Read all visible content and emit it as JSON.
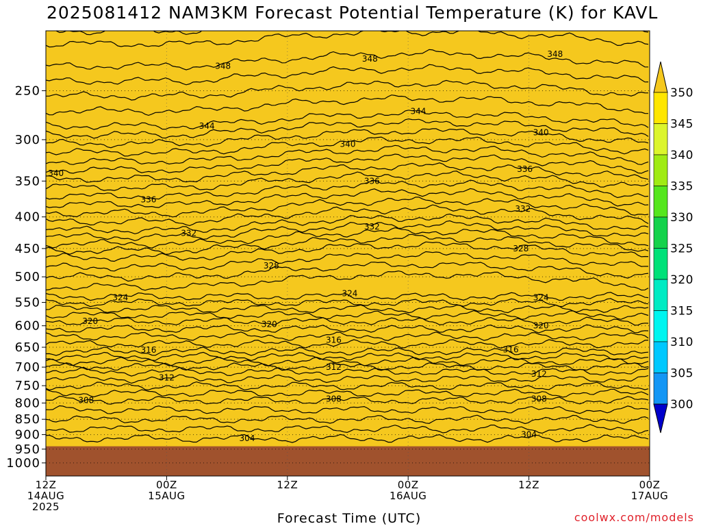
{
  "title": "2025081412 NAM3KM Forecast Potential Temperature (K) for KAVL",
  "xlabel": "Forecast Time (UTC)",
  "credit": "coolwx.com/models",
  "chart_data": {
    "type": "heatmap",
    "title": "2025081412 NAM3KM Forecast Potential Temperature (K) for KAVL",
    "xlabel": "Forecast Time (UTC)",
    "ylabel": "",
    "y_axis": {
      "scale": "log",
      "inverted": true,
      "range": [
        1050,
        200
      ],
      "ticks": [
        250,
        300,
        350,
        400,
        450,
        500,
        550,
        600,
        650,
        700,
        750,
        800,
        850,
        900,
        950,
        1000
      ]
    },
    "x_axis": {
      "range_hours": [
        0,
        60
      ],
      "ticks": [
        {
          "hour": 0,
          "lines": [
            "12Z",
            "14AUG",
            "2025"
          ]
        },
        {
          "hour": 12,
          "lines": [
            "00Z",
            "15AUG"
          ]
        },
        {
          "hour": 24,
          "lines": [
            "12Z"
          ]
        },
        {
          "hour": 36,
          "lines": [
            "00Z",
            "16AUG"
          ]
        },
        {
          "hour": 48,
          "lines": [
            "12Z"
          ]
        },
        {
          "hour": 60,
          "lines": [
            "00Z",
            "17AUG"
          ]
        }
      ]
    },
    "grid": "dotted",
    "surface_pressure": 940,
    "surface_color": "#a0522d",
    "colorbar": {
      "labels": [
        350,
        345,
        340,
        335,
        330,
        325,
        320,
        315,
        310,
        305,
        300
      ],
      "colors": [
        "#0000cc",
        "#0a5ad8",
        "#1e78f0",
        "#1496f5",
        "#00c8ff",
        "#00f5f0",
        "#00ebc3",
        "#00e178",
        "#14d24b",
        "#55e61e",
        "#a0eb14",
        "#dcf52d",
        "#ffe600",
        "#f5c81e"
      ]
    },
    "contours": [
      {
        "value": 304,
        "p": 913,
        "labels": [
          {
            "hour": 20,
            "p": 913
          },
          {
            "hour": 48,
            "p": 900
          }
        ]
      },
      {
        "value": 308,
        "p": 792,
        "labels": [
          {
            "hour": 4,
            "p": 792
          },
          {
            "hour": 28.6,
            "p": 788
          },
          {
            "hour": 49,
            "p": 788
          }
        ]
      },
      {
        "value": 312,
        "p": 712,
        "labels": [
          {
            "hour": 12,
            "p": 728
          },
          {
            "hour": 28.6,
            "p": 700
          },
          {
            "hour": 49,
            "p": 718
          }
        ]
      },
      {
        "value": 316,
        "p": 660,
        "labels": [
          {
            "hour": 10.2,
            "p": 657
          },
          {
            "hour": 28.6,
            "p": 633
          },
          {
            "hour": 46.2,
            "p": 656
          }
        ]
      },
      {
        "value": 320,
        "p": 590,
        "labels": [
          {
            "hour": 4.4,
            "p": 590
          },
          {
            "hour": 22.2,
            "p": 597
          },
          {
            "hour": 49.2,
            "p": 600
          }
        ]
      },
      {
        "value": 324,
        "p": 538,
        "labels": [
          {
            "hour": 7.4,
            "p": 540
          },
          {
            "hour": 30.2,
            "p": 532
          },
          {
            "hour": 49.2,
            "p": 540
          }
        ]
      },
      {
        "value": 328,
        "p": 465,
        "labels": [
          {
            "hour": 22.4,
            "p": 480
          },
          {
            "hour": 47.2,
            "p": 450
          }
        ]
      },
      {
        "value": 332,
        "p": 420,
        "labels": [
          {
            "hour": 14.2,
            "p": 425
          },
          {
            "hour": 32.4,
            "p": 415
          },
          {
            "hour": 47.4,
            "p": 388
          }
        ]
      },
      {
        "value": 336,
        "p": 370,
        "labels": [
          {
            "hour": 10.2,
            "p": 375
          },
          {
            "hour": 32.4,
            "p": 350
          },
          {
            "hour": 47.6,
            "p": 335
          }
        ]
      },
      {
        "value": 340,
        "p": 325,
        "labels": [
          {
            "hour": 1,
            "p": 340
          },
          {
            "hour": 30,
            "p": 305
          },
          {
            "hour": 49.2,
            "p": 292
          }
        ]
      },
      {
        "value": 344,
        "p": 285,
        "labels": [
          {
            "hour": 16,
            "p": 285
          },
          {
            "hour": 37,
            "p": 270
          }
        ]
      },
      {
        "value": 348,
        "p": 228,
        "labels": [
          {
            "hour": 17.6,
            "p": 228
          },
          {
            "hour": 32.2,
            "p": 222
          },
          {
            "hour": 50.6,
            "p": 218
          }
        ]
      }
    ]
  }
}
